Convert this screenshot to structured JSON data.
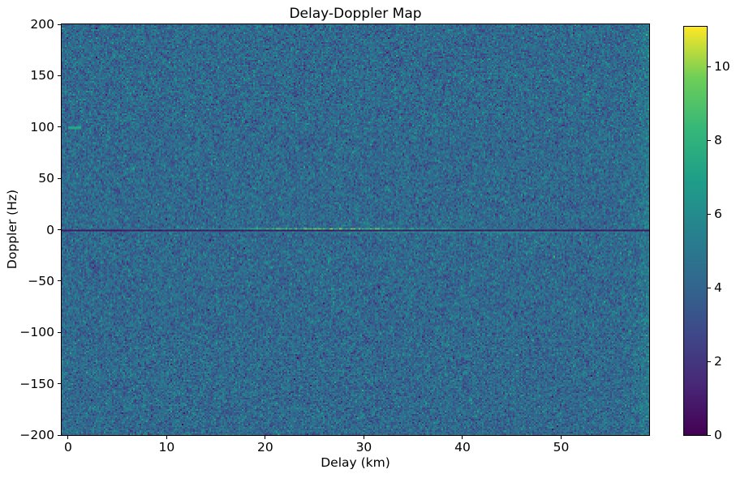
{
  "figure": {
    "background": "#ffffff",
    "text_color": "#000000"
  },
  "chart_data": {
    "type": "heatmap",
    "title": "Delay-Doppler Map",
    "xlabel": "Delay (km)",
    "ylabel": "Doppler (Hz)",
    "x_range_km": [
      -0.65,
      58.93
    ],
    "y_range_hz": [
      -200,
      200
    ],
    "x_ticks": [
      {
        "v": 0,
        "label": "0"
      },
      {
        "v": 10,
        "label": "10"
      },
      {
        "v": 20,
        "label": "20"
      },
      {
        "v": 30,
        "label": "30"
      },
      {
        "v": 40,
        "label": "40"
      },
      {
        "v": 50,
        "label": "50"
      }
    ],
    "y_ticks": [
      {
        "v": 200,
        "label": "200"
      },
      {
        "v": 150,
        "label": "150"
      },
      {
        "v": 100,
        "label": "100"
      },
      {
        "v": 50,
        "label": "50"
      },
      {
        "v": 0,
        "label": "0"
      },
      {
        "v": -50,
        "label": "−50"
      },
      {
        "v": -100,
        "label": "−100"
      },
      {
        "v": -150,
        "label": "−150"
      },
      {
        "v": -200,
        "label": "−200"
      }
    ],
    "colorbar": {
      "vmin": 0,
      "vmax": 11.08,
      "ticks": [
        {
          "v": 0,
          "label": "0"
        },
        {
          "v": 2,
          "label": "2"
        },
        {
          "v": 4,
          "label": "4"
        },
        {
          "v": 6,
          "label": "6"
        },
        {
          "v": 8,
          "label": "8"
        },
        {
          "v": 10,
          "label": "10"
        }
      ]
    },
    "colormap": {
      "name": "viridis",
      "stops": [
        [
          0.0,
          "#440154"
        ],
        [
          0.125,
          "#482878"
        ],
        [
          0.25,
          "#3e4989"
        ],
        [
          0.375,
          "#31688e"
        ],
        [
          0.5,
          "#26828e"
        ],
        [
          0.625,
          "#1f9e89"
        ],
        [
          0.75,
          "#35b779"
        ],
        [
          0.875,
          "#6ece58"
        ],
        [
          1.0,
          "#fde725"
        ]
      ]
    },
    "grid": {
      "cols": 362,
      "rows": 254
    },
    "noise": {
      "seed": 1337,
      "mean": 4.25,
      "std": 0.95,
      "clip": [
        0.25,
        11.05
      ]
    },
    "features": {
      "zero_doppler_notch": {
        "doppler_hz": 0,
        "half_width_hz": 0.9,
        "value_min": 0.45,
        "value_max": 1.05,
        "description": "dark suppressed line across all delays at 0 Hz"
      },
      "ridge_above_zero": {
        "doppler_band_hz": [
          0.9,
          2.9
        ],
        "peak_delay_km": 27,
        "sigma_km": 13.5,
        "peak_amplitude": 5.2,
        "base_value": 3.3,
        "description": "bright green-yellow clutter ridge just above 0 Hz, strongest near 20-35 km"
      },
      "ridge_below_zero": {
        "doppler_band_hz": [
          -2.9,
          -0.9
        ],
        "peak_delay_km": 40,
        "sigma_km": 17,
        "peak_amplitude": 3.0,
        "base_value": 3.3,
        "description": "fainter bright ridge just below 0 Hz, strongest near 30-59 km"
      },
      "doppler_100_blip": {
        "doppler_hz": 100,
        "half_width_hz": 0.8,
        "delay_km": [
          0.0,
          1.4
        ],
        "value": 7.3,
        "jitter": 0.5,
        "description": "small bright green target blip at +100 Hz near 0.5 km delay"
      },
      "right_edge_glow": {
        "center_km": 59.2,
        "sigma_km": 1.3,
        "boost": 0.9,
        "description": "faint brighter column at far right edge"
      }
    }
  }
}
